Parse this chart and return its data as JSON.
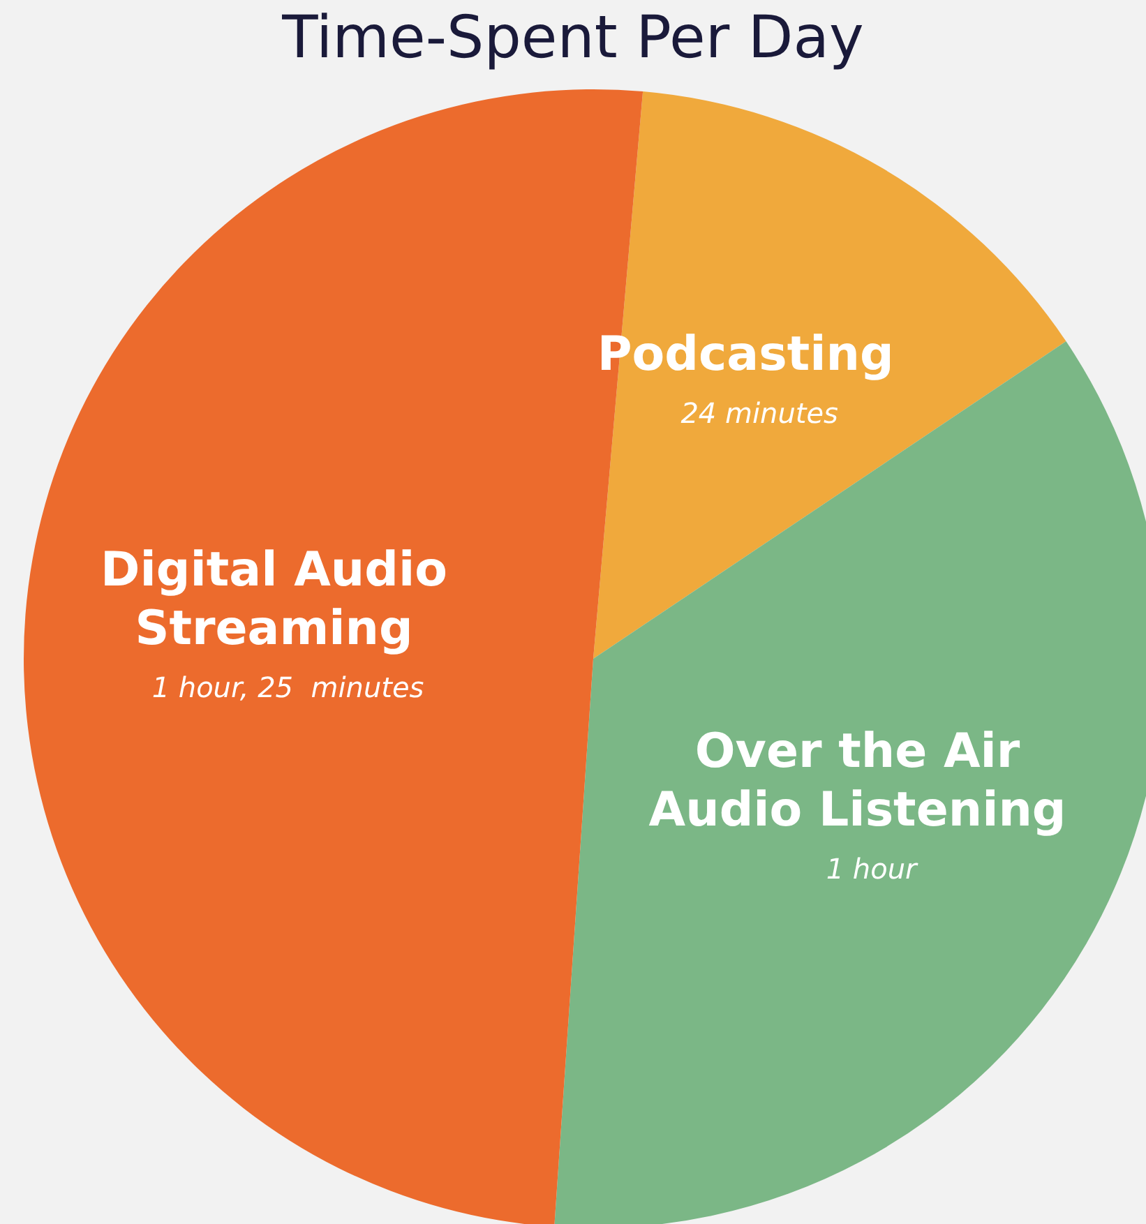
{
  "chart_data": {
    "type": "pie",
    "title": "Time-Spent Per Day",
    "categories": [
      "Podcasting",
      "Over the Air Audio Listening",
      "Digital Audio Streaming"
    ],
    "values": [
      14.2,
      35.5,
      50.3
    ],
    "annotations": [
      "24 minutes",
      "1 hour",
      "1 hour, 25  minutes"
    ],
    "colors": [
      "#f0a93c",
      "#7bb786",
      "#ec6b2d"
    ]
  }
}
